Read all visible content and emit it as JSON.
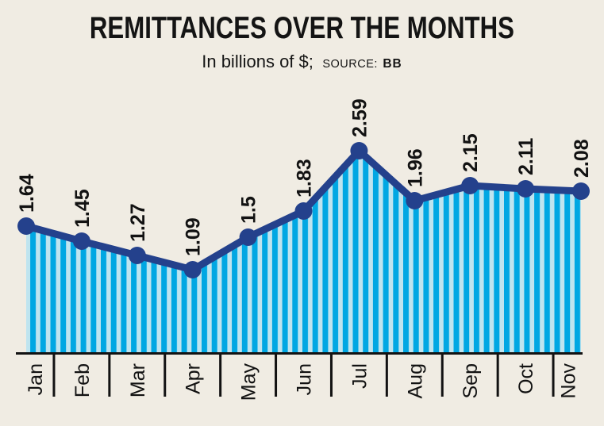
{
  "window": {
    "background": "#f0ece3"
  },
  "header": {
    "title": "REMITTANCES OVER THE MONTHS",
    "subtitle_units": "In billions of $;",
    "source_label": "SOURCE:",
    "source_value": "BB"
  },
  "chart_data": {
    "type": "area",
    "title": "REMITTANCES OVER THE MONTHS",
    "subtitle": "In billions of $; SOURCE: BB",
    "xlabel": "",
    "ylabel": "",
    "categories": [
      "Jan",
      "Feb",
      "Mar",
      "Apr",
      "May",
      "Jun",
      "Jul",
      "Aug",
      "Sep",
      "Oct",
      "Nov"
    ],
    "values": [
      1.64,
      1.45,
      1.27,
      1.09,
      1.5,
      1.83,
      2.59,
      1.96,
      2.15,
      2.11,
      2.08
    ],
    "ylim": [
      0,
      2.8
    ],
    "grid": false,
    "legend": false,
    "value_labels_rotated": true,
    "month_labels_rotated": true,
    "style": {
      "line_color": "#24418c",
      "marker_color": "#24418c",
      "stripe_dark": "#00a7e3",
      "stripe_light": "#bfe4ef",
      "axis_color": "#121212",
      "label_color": "#121212",
      "background": "#f0ece3"
    }
  }
}
